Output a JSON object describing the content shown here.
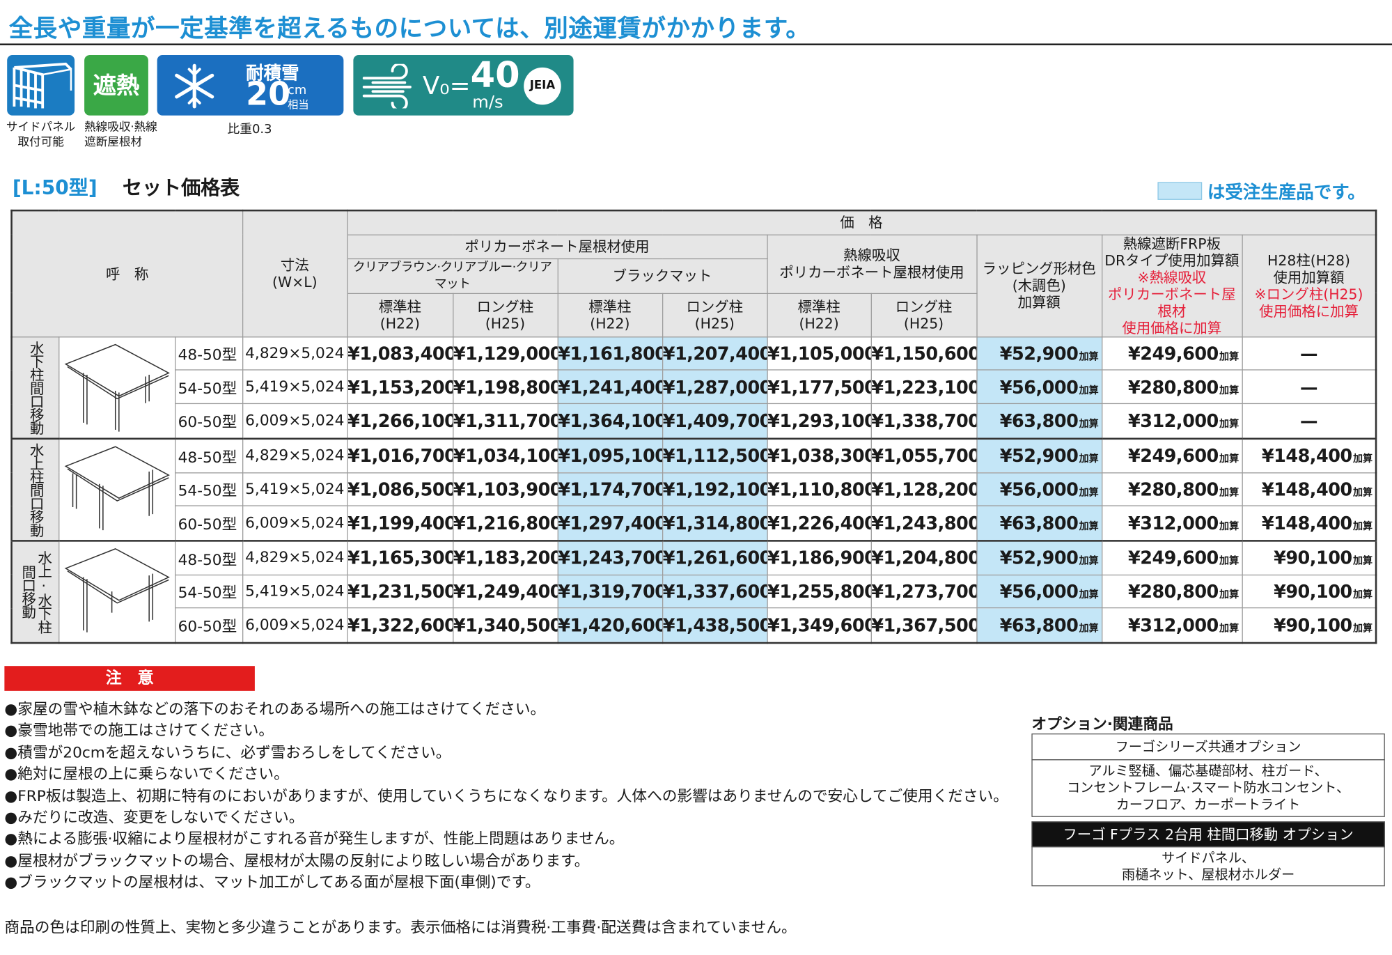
{
  "header": {
    "title": "全長や重量が一定基準を超えるものについては、別途運賃がかかります。"
  },
  "features": [
    {
      "label": "サイドパネル\n取付可能"
    },
    {
      "icon_text": "遮熱",
      "label": "熱線吸収·熱線\n遮断屋根材"
    },
    {
      "icon_text": "耐積雪",
      "value": "20",
      "unit": "cm",
      "unit_note": "相当",
      "label": "比重0.3"
    },
    {
      "prefix": "V₀=",
      "value": "40",
      "unit": "m/s",
      "badge": "JEIA"
    }
  ],
  "table": {
    "code": "[L:50型]",
    "title": "セット価格表",
    "legend": "は受注生産品です。",
    "headers": {
      "name": "呼　称",
      "size": "寸法\n(W×L)",
      "price": "価　格",
      "polycarbonate": "ポリカーボネート屋根材使用",
      "clear": "クリアブラウン·クリアブルー·クリアマット",
      "black": "ブラックマット",
      "heat_absorbing": "熱線吸収\nポリカーボネート屋根材使用",
      "standard_post": "標準柱\n(H22)",
      "long_post": "ロング柱\n(H25)",
      "wrapping": "ラッピング形材色\n(木調色)\n加算額",
      "frp": "熱線遮断FRP板\nDRタイプ使用加算額",
      "frp_note": "※熱線吸収\nポリカーボネート屋根材\n使用価格に加算",
      "h28": "H28柱(H28)\n使用加算額",
      "h28_note": "※ロング柱(H25)\n使用価格に加算"
    },
    "add_suffix": "加算",
    "groups": [
      {
        "label": "水下柱間口移動",
        "rows": [
          {
            "model": "48-50型",
            "size": "4,829×5,024",
            "prices": [
              "¥1,083,400",
              "¥1,129,000",
              "¥1,161,800",
              "¥1,207,400",
              "¥1,105,000",
              "¥1,150,600"
            ],
            "wrapping": "¥52,900",
            "frp": "¥249,600",
            "h28": "—"
          },
          {
            "model": "54-50型",
            "size": "5,419×5,024",
            "prices": [
              "¥1,153,200",
              "¥1,198,800",
              "¥1,241,400",
              "¥1,287,000",
              "¥1,177,500",
              "¥1,223,100"
            ],
            "wrapping": "¥56,000",
            "frp": "¥280,800",
            "h28": "—"
          },
          {
            "model": "60-50型",
            "size": "6,009×5,024",
            "prices": [
              "¥1,266,100",
              "¥1,311,700",
              "¥1,364,100",
              "¥1,409,700",
              "¥1,293,100",
              "¥1,338,700"
            ],
            "wrapping": "¥63,800",
            "frp": "¥312,000",
            "h28": "—"
          }
        ]
      },
      {
        "label": "水上柱間口移動",
        "rows": [
          {
            "model": "48-50型",
            "size": "4,829×5,024",
            "prices": [
              "¥1,016,700",
              "¥1,034,100",
              "¥1,095,100",
              "¥1,112,500",
              "¥1,038,300",
              "¥1,055,700"
            ],
            "wrapping": "¥52,900",
            "frp": "¥249,600",
            "h28": "¥148,400"
          },
          {
            "model": "54-50型",
            "size": "5,419×5,024",
            "prices": [
              "¥1,086,500",
              "¥1,103,900",
              "¥1,174,700",
              "¥1,192,100",
              "¥1,110,800",
              "¥1,128,200"
            ],
            "wrapping": "¥56,000",
            "frp": "¥280,800",
            "h28": "¥148,400"
          },
          {
            "model": "60-50型",
            "size": "6,009×5,024",
            "prices": [
              "¥1,199,400",
              "¥1,216,800",
              "¥1,297,400",
              "¥1,314,800",
              "¥1,226,400",
              "¥1,243,800"
            ],
            "wrapping": "¥63,800",
            "frp": "¥312,000",
            "h28": "¥148,400"
          }
        ]
      },
      {
        "label": "水上·水下柱\n間口移動",
        "rows": [
          {
            "model": "48-50型",
            "size": "4,829×5,024",
            "prices": [
              "¥1,165,300",
              "¥1,183,200",
              "¥1,243,700",
              "¥1,261,600",
              "¥1,186,900",
              "¥1,204,800"
            ],
            "wrapping": "¥52,900",
            "frp": "¥249,600",
            "h28": "¥90,100"
          },
          {
            "model": "54-50型",
            "size": "5,419×5,024",
            "prices": [
              "¥1,231,500",
              "¥1,249,400",
              "¥1,319,700",
              "¥1,337,600",
              "¥1,255,800",
              "¥1,273,700"
            ],
            "wrapping": "¥56,000",
            "frp": "¥280,800",
            "h28": "¥90,100"
          },
          {
            "model": "60-50型",
            "size": "6,009×5,024",
            "prices": [
              "¥1,322,600",
              "¥1,340,500",
              "¥1,420,600",
              "¥1,438,500",
              "¥1,349,600",
              "¥1,367,500"
            ],
            "wrapping": "¥63,800",
            "frp": "¥312,000",
            "h28": "¥90,100"
          }
        ]
      }
    ]
  },
  "caution": {
    "heading": "注　意",
    "items": [
      "●家屋の雪や植木鉢などの落下のおそれのある場所への施工はさけてください。",
      "●豪雪地帯での施工はさけてください。",
      "●積雪が20cmを超えないうちに、必ず雪おろしをしてください。",
      "●絶対に屋根の上に乗らないでください。",
      "●FRP板は製造上、初期に特有のにおいがありますが、使用していくうちになくなります。人体への影響はありませんので安心してご使用ください。",
      "●みだりに改造、変更をしないでください。",
      "●熱による膨張·収縮により屋根材がこすれる音が発生しますが、性能上問題はありません。",
      "●屋根材がブラックマットの場合、屋根材が太陽の反射により眩しい場合があります。",
      "●ブラックマットの屋根材は、マット加工がしてある面が屋根下面(車側)です。"
    ]
  },
  "footer": "商品の色は印刷の性質上、実物と多少違うことがあります。表示価格には消費税·工事費·配送費は含まれていません。",
  "options": {
    "title": "オプション·関連商品",
    "sections": [
      {
        "heading": "フーゴシリーズ共通オプション",
        "items": "アルミ竪樋、偏芯基礎部材、柱ガード、\nコンセントフレーム·スマート防水コンセント、\nカーフロア、カーポートライト"
      },
      {
        "heading": "フーゴ Fプラス 2台用 柱間口移動 オプション",
        "items": "サイドパネル、\n雨樋ネット、屋根材ホルダー"
      }
    ]
  }
}
